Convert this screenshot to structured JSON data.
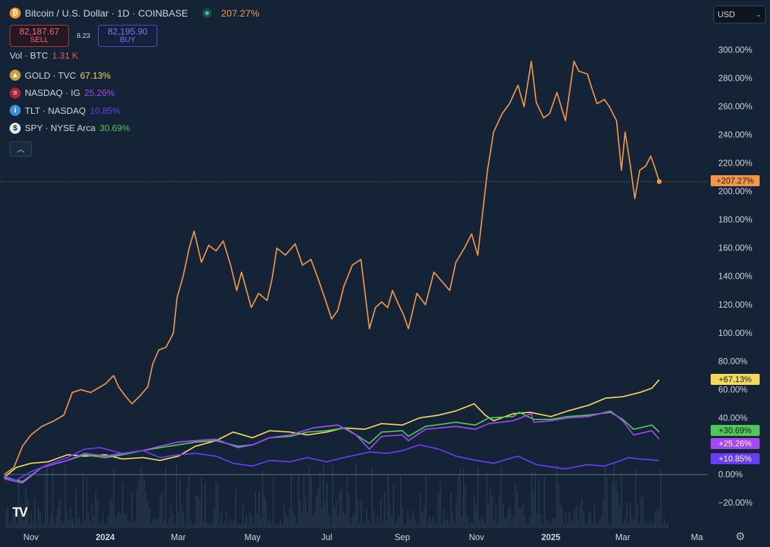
{
  "header": {
    "symbol_title": "Bitcoin / U.S. Dollar · 1D · COINBASE",
    "coin_icon": "bitcoin-icon",
    "change": "207.27%",
    "sell_price": "82,187.67",
    "sell_label": "SELL",
    "spread": "8.23",
    "buy_price": "82,195.90",
    "buy_label": "BUY",
    "currency": "USD"
  },
  "legend": {
    "volume": {
      "label": "Vol · BTC",
      "value": "1.31 K",
      "color": "#ef5350"
    },
    "comparisons": [
      {
        "icon": "gold-icon",
        "glyph": "▲",
        "icon_color": "#c9a040",
        "label": "GOLD · TVC",
        "value": "67.13%",
        "color": "#f2d85e"
      },
      {
        "icon": "us-flag-icon",
        "glyph": "≡",
        "icon_color": "#b22234",
        "label": "NASDAQ · IG",
        "value": "25.26%",
        "color": "#a447f5"
      },
      {
        "icon": "info-icon",
        "glyph": "i",
        "icon_color": "#3d8ee0",
        "label": "TLT · NASDAQ",
        "value": "10.85%",
        "color": "#6b3cf5"
      },
      {
        "icon": "dollar-icon",
        "glyph": "$",
        "icon_color": "#e8e8e8",
        "label": "SPY · NYSE Arca",
        "value": "30.69%",
        "color": "#4fc75a"
      }
    ]
  },
  "colors": {
    "background": "#142336",
    "btc": "#f0974a",
    "gold": "#f2d85e",
    "spy": "#4fc75a",
    "nasdaq": "#a447f5",
    "tlt": "#6b3cf5"
  },
  "chart_data": {
    "type": "line",
    "y_unit": "percent change",
    "ylim": [
      -28,
      300
    ],
    "y_ticks": [
      "300.00%",
      "280.00%",
      "260.00%",
      "240.00%",
      "220.00%",
      "200.00%",
      "180.00%",
      "160.00%",
      "140.00%",
      "120.00%",
      "100.00%",
      "80.00%",
      "60.00%",
      "40.00%",
      "20.00%",
      "0.00%",
      "−20.00%"
    ],
    "y_tick_values": [
      300,
      280,
      260,
      240,
      220,
      200,
      180,
      160,
      140,
      120,
      100,
      80,
      60,
      40,
      20,
      0,
      -20
    ],
    "x_ticks": [
      "Nov",
      "2024",
      "Mar",
      "May",
      "Jul",
      "Sep",
      "Nov",
      "2025",
      "Mar",
      "Ma"
    ],
    "x_tick_dates": [
      "2023-11-01",
      "2024-01-01",
      "2024-03-01",
      "2024-05-01",
      "2024-07-01",
      "2024-09-01",
      "2024-11-01",
      "2025-01-01",
      "2025-03-01",
      "2025-05-01"
    ],
    "x_range": [
      "2023-10-10",
      "2025-05-10"
    ],
    "grid": false,
    "legend_position": "top-left",
    "series": [
      {
        "name": "Bitcoin / U.S. Dollar",
        "color": "#f0974a",
        "end_label": "+207.27%",
        "points": [
          [
            "2023-10-10",
            0
          ],
          [
            "2023-10-18",
            5
          ],
          [
            "2023-10-25",
            20
          ],
          [
            "2023-11-01",
            28
          ],
          [
            "2023-11-10",
            34
          ],
          [
            "2023-11-20",
            38
          ],
          [
            "2023-11-28",
            42
          ],
          [
            "2023-12-05",
            58
          ],
          [
            "2023-12-12",
            60
          ],
          [
            "2023-12-20",
            58
          ],
          [
            "2024-01-01",
            64
          ],
          [
            "2024-01-08",
            70
          ],
          [
            "2024-01-12",
            62
          ],
          [
            "2024-01-18",
            55
          ],
          [
            "2024-01-23",
            50
          ],
          [
            "2024-01-30",
            56
          ],
          [
            "2024-02-05",
            62
          ],
          [
            "2024-02-09",
            78
          ],
          [
            "2024-02-14",
            88
          ],
          [
            "2024-02-20",
            90
          ],
          [
            "2024-02-26",
            100
          ],
          [
            "2024-02-29",
            125
          ],
          [
            "2024-03-05",
            140
          ],
          [
            "2024-03-10",
            160
          ],
          [
            "2024-03-14",
            172
          ],
          [
            "2024-03-20",
            150
          ],
          [
            "2024-03-26",
            162
          ],
          [
            "2024-04-01",
            158
          ],
          [
            "2024-04-07",
            165
          ],
          [
            "2024-04-13",
            148
          ],
          [
            "2024-04-18",
            130
          ],
          [
            "2024-04-22",
            143
          ],
          [
            "2024-04-30",
            118
          ],
          [
            "2024-05-06",
            128
          ],
          [
            "2024-05-13",
            123
          ],
          [
            "2024-05-17",
            138
          ],
          [
            "2024-05-21",
            160
          ],
          [
            "2024-05-28",
            155
          ],
          [
            "2024-06-05",
            163
          ],
          [
            "2024-06-11",
            148
          ],
          [
            "2024-06-18",
            152
          ],
          [
            "2024-06-24",
            138
          ],
          [
            "2024-06-30",
            123
          ],
          [
            "2024-07-05",
            110
          ],
          [
            "2024-07-10",
            116
          ],
          [
            "2024-07-15",
            133
          ],
          [
            "2024-07-22",
            148
          ],
          [
            "2024-07-29",
            152
          ],
          [
            "2024-08-05",
            103
          ],
          [
            "2024-08-10",
            118
          ],
          [
            "2024-08-15",
            122
          ],
          [
            "2024-08-20",
            118
          ],
          [
            "2024-08-24",
            130
          ],
          [
            "2024-08-28",
            122
          ],
          [
            "2024-09-02",
            113
          ],
          [
            "2024-09-06",
            103
          ],
          [
            "2024-09-13",
            128
          ],
          [
            "2024-09-20",
            120
          ],
          [
            "2024-09-27",
            143
          ],
          [
            "2024-10-05",
            135
          ],
          [
            "2024-10-10",
            130
          ],
          [
            "2024-10-15",
            150
          ],
          [
            "2024-10-22",
            160
          ],
          [
            "2024-10-28",
            170
          ],
          [
            "2024-11-02",
            155
          ],
          [
            "2024-11-06",
            185
          ],
          [
            "2024-11-10",
            215
          ],
          [
            "2024-11-15",
            242
          ],
          [
            "2024-11-22",
            255
          ],
          [
            "2024-11-28",
            262
          ],
          [
            "2024-12-05",
            275
          ],
          [
            "2024-12-10",
            260
          ],
          [
            "2024-12-16",
            292
          ],
          [
            "2024-12-20",
            263
          ],
          [
            "2024-12-26",
            252
          ],
          [
            "2024-12-31",
            255
          ],
          [
            "2025-01-06",
            270
          ],
          [
            "2025-01-13",
            250
          ],
          [
            "2025-01-20",
            292
          ],
          [
            "2025-01-24",
            285
          ],
          [
            "2025-01-31",
            283
          ],
          [
            "2025-02-04",
            272
          ],
          [
            "2025-02-08",
            262
          ],
          [
            "2025-02-14",
            265
          ],
          [
            "2025-02-18",
            260
          ],
          [
            "2025-02-24",
            250
          ],
          [
            "2025-02-28",
            215
          ],
          [
            "2025-03-03",
            242
          ],
          [
            "2025-03-07",
            220
          ],
          [
            "2025-03-11",
            195
          ],
          [
            "2025-03-15",
            215
          ],
          [
            "2025-03-20",
            218
          ],
          [
            "2025-03-24",
            225
          ],
          [
            "2025-03-27",
            218
          ],
          [
            "2025-03-31",
            207
          ]
        ]
      },
      {
        "name": "GOLD · TVC",
        "color": "#f2d85e",
        "end_label": "+67.13%",
        "points": [
          [
            "2023-10-10",
            -2
          ],
          [
            "2023-10-20",
            5
          ],
          [
            "2023-11-01",
            8
          ],
          [
            "2023-11-15",
            9
          ],
          [
            "2023-12-01",
            14
          ],
          [
            "2023-12-15",
            13
          ],
          [
            "2024-01-01",
            14
          ],
          [
            "2024-01-15",
            11
          ],
          [
            "2024-02-01",
            12
          ],
          [
            "2024-02-15",
            10
          ],
          [
            "2024-03-01",
            13
          ],
          [
            "2024-03-15",
            20
          ],
          [
            "2024-04-01",
            24
          ],
          [
            "2024-04-15",
            30
          ],
          [
            "2024-05-01",
            26
          ],
          [
            "2024-05-15",
            31
          ],
          [
            "2024-06-01",
            30
          ],
          [
            "2024-06-15",
            28
          ],
          [
            "2024-07-01",
            30
          ],
          [
            "2024-07-15",
            33
          ],
          [
            "2024-08-01",
            32
          ],
          [
            "2024-08-15",
            36
          ],
          [
            "2024-09-01",
            35
          ],
          [
            "2024-09-15",
            40
          ],
          [
            "2024-10-01",
            42
          ],
          [
            "2024-10-15",
            45
          ],
          [
            "2024-10-30",
            50
          ],
          [
            "2024-11-08",
            42
          ],
          [
            "2024-11-15",
            38
          ],
          [
            "2024-12-01",
            43
          ],
          [
            "2024-12-15",
            44
          ],
          [
            "2025-01-01",
            41
          ],
          [
            "2025-01-15",
            45
          ],
          [
            "2025-02-01",
            49
          ],
          [
            "2025-02-15",
            54
          ],
          [
            "2025-03-01",
            55
          ],
          [
            "2025-03-15",
            58
          ],
          [
            "2025-03-25",
            61
          ],
          [
            "2025-03-31",
            67
          ]
        ]
      },
      {
        "name": "SPY · NYSE Arca",
        "color": "#4fc75a",
        "end_label": "+30.69%",
        "points": [
          [
            "2023-10-10",
            -2
          ],
          [
            "2023-10-25",
            -5
          ],
          [
            "2023-11-10",
            5
          ],
          [
            "2023-12-01",
            10
          ],
          [
            "2023-12-15",
            14
          ],
          [
            "2024-01-01",
            12
          ],
          [
            "2024-01-15",
            14
          ],
          [
            "2024-02-01",
            17
          ],
          [
            "2024-02-15",
            19
          ],
          [
            "2024-03-01",
            21
          ],
          [
            "2024-03-15",
            23
          ],
          [
            "2024-04-01",
            24
          ],
          [
            "2024-04-19",
            20
          ],
          [
            "2024-05-01",
            21
          ],
          [
            "2024-05-15",
            26
          ],
          [
            "2024-06-01",
            27
          ],
          [
            "2024-06-15",
            30
          ],
          [
            "2024-07-01",
            31
          ],
          [
            "2024-07-16",
            33
          ],
          [
            "2024-07-25",
            28
          ],
          [
            "2024-08-05",
            22
          ],
          [
            "2024-08-15",
            30
          ],
          [
            "2024-09-01",
            31
          ],
          [
            "2024-09-06",
            27
          ],
          [
            "2024-09-20",
            34
          ],
          [
            "2024-10-15",
            37
          ],
          [
            "2024-10-31",
            35
          ],
          [
            "2024-11-11",
            40
          ],
          [
            "2024-12-01",
            41
          ],
          [
            "2024-12-06",
            44
          ],
          [
            "2024-12-18",
            39
          ],
          [
            "2025-01-01",
            39
          ],
          [
            "2025-01-15",
            41
          ],
          [
            "2025-02-01",
            42
          ],
          [
            "2025-02-19",
            44
          ],
          [
            "2025-03-01",
            39
          ],
          [
            "2025-03-10",
            32
          ],
          [
            "2025-03-25",
            35
          ],
          [
            "2025-03-31",
            30
          ]
        ]
      },
      {
        "name": "NASDAQ · IG",
        "color": "#a447f5",
        "end_label": "+25.26%",
        "points": [
          [
            "2023-10-10",
            -3
          ],
          [
            "2023-10-25",
            -6
          ],
          [
            "2023-11-10",
            5
          ],
          [
            "2023-12-01",
            10
          ],
          [
            "2023-12-15",
            15
          ],
          [
            "2024-01-01",
            13
          ],
          [
            "2024-01-15",
            15
          ],
          [
            "2024-02-01",
            17
          ],
          [
            "2024-02-15",
            20
          ],
          [
            "2024-03-01",
            23
          ],
          [
            "2024-03-15",
            24
          ],
          [
            "2024-04-01",
            25
          ],
          [
            "2024-04-19",
            19
          ],
          [
            "2024-05-01",
            21
          ],
          [
            "2024-05-15",
            26
          ],
          [
            "2024-06-01",
            28
          ],
          [
            "2024-06-20",
            33
          ],
          [
            "2024-07-10",
            35
          ],
          [
            "2024-07-25",
            28
          ],
          [
            "2024-08-05",
            18
          ],
          [
            "2024-08-15",
            27
          ],
          [
            "2024-09-01",
            28
          ],
          [
            "2024-09-06",
            24
          ],
          [
            "2024-09-20",
            32
          ],
          [
            "2024-10-15",
            34
          ],
          [
            "2024-10-31",
            32
          ],
          [
            "2024-11-11",
            36
          ],
          [
            "2024-12-01",
            38
          ],
          [
            "2024-12-16",
            43
          ],
          [
            "2024-12-18",
            37
          ],
          [
            "2025-01-01",
            38
          ],
          [
            "2025-01-15",
            40
          ],
          [
            "2025-02-01",
            41
          ],
          [
            "2025-02-19",
            45
          ],
          [
            "2025-03-01",
            38
          ],
          [
            "2025-03-10",
            28
          ],
          [
            "2025-03-25",
            31
          ],
          [
            "2025-03-31",
            25
          ]
        ]
      },
      {
        "name": "TLT · NASDAQ",
        "color": "#6b3cf5",
        "end_label": "+10.85%",
        "points": [
          [
            "2023-10-10",
            -1
          ],
          [
            "2023-10-20",
            -4
          ],
          [
            "2023-11-01",
            2
          ],
          [
            "2023-11-15",
            7
          ],
          [
            "2023-12-01",
            12
          ],
          [
            "2023-12-15",
            18
          ],
          [
            "2023-12-28",
            19
          ],
          [
            "2024-01-15",
            15
          ],
          [
            "2024-02-01",
            17
          ],
          [
            "2024-02-15",
            12
          ],
          [
            "2024-03-01",
            14
          ],
          [
            "2024-03-15",
            15
          ],
          [
            "2024-04-01",
            13
          ],
          [
            "2024-04-15",
            8
          ],
          [
            "2024-05-01",
            6
          ],
          [
            "2024-05-15",
            10
          ],
          [
            "2024-06-01",
            9
          ],
          [
            "2024-06-15",
            12
          ],
          [
            "2024-07-01",
            9
          ],
          [
            "2024-07-15",
            12
          ],
          [
            "2024-08-05",
            16
          ],
          [
            "2024-08-20",
            15
          ],
          [
            "2024-09-01",
            17
          ],
          [
            "2024-09-15",
            21
          ],
          [
            "2024-10-01",
            18
          ],
          [
            "2024-10-15",
            13
          ],
          [
            "2024-11-01",
            10
          ],
          [
            "2024-11-15",
            8
          ],
          [
            "2024-12-05",
            13
          ],
          [
            "2024-12-20",
            7
          ],
          [
            "2025-01-13",
            4
          ],
          [
            "2025-01-31",
            7
          ],
          [
            "2025-02-14",
            6
          ],
          [
            "2025-02-28",
            10
          ],
          [
            "2025-03-05",
            12
          ],
          [
            "2025-03-15",
            11
          ],
          [
            "2025-03-31",
            10
          ]
        ]
      }
    ]
  }
}
